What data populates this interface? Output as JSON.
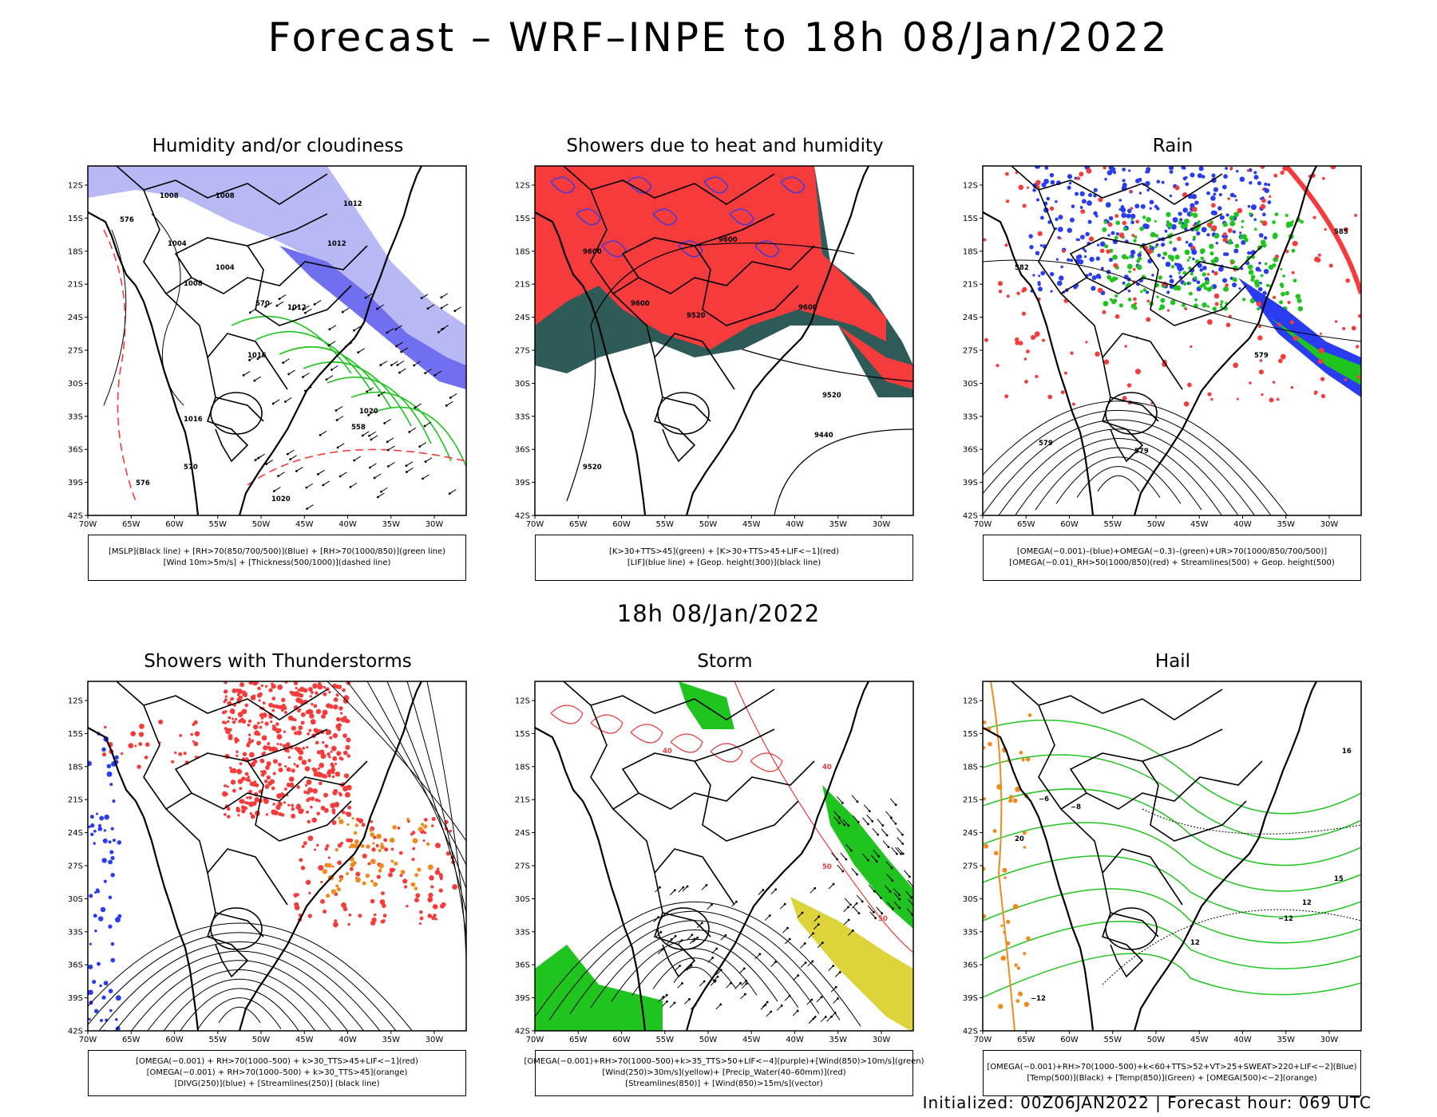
{
  "title": "Forecast – WRF–INPE to 18h 08/Jan/2022",
  "subtitle": "18h 08/Jan/2022",
  "footer": "Initialized: 00Z06JAN2022 | Forecast hour: 069 UTC",
  "axes": {
    "lat_labels": [
      "12S",
      "15S",
      "18S",
      "21S",
      "24S",
      "27S",
      "30S",
      "33S",
      "36S",
      "39S",
      "42S"
    ],
    "lon_labels": [
      "70W",
      "65W",
      "60W",
      "55W",
      "50W",
      "45W",
      "40W",
      "35W",
      "30W"
    ]
  },
  "colors": {
    "blue_fill": "#6f6ff0",
    "light_blue": "#b8b8f5",
    "green": "#1fc41f",
    "red": "#f53b3b",
    "dark_teal": "#2e5a57",
    "yellow": "#dcd43a",
    "orange": "#f08a1c"
  },
  "panels": [
    {
      "title": "Humidity and/or cloudiness",
      "legend": [
        "[MSLP](Black line) + [RH>70(850/700/500)](Blue) + [RH>70(1000/850)](green line)",
        "[Wind 10m>5m/s] + [Thickness(500/1000)](dashed line)"
      ],
      "labels": [
        "1008",
        "1008",
        "1012",
        "1012",
        "1004",
        "1004",
        "1008",
        "1012",
        "1016",
        "1020",
        "1020",
        "1016",
        "576",
        "570",
        "558",
        "576",
        "570"
      ]
    },
    {
      "title": "Showers due to heat and humidity",
      "legend": [
        "[K>30+TTS>45](green) + [K>30+TTS>45+LIF<−1](red)",
        "[LIF](blue line) + [Geop. height(300)](black line)"
      ],
      "labels": [
        "9600",
        "9600",
        "9520",
        "9600",
        "9520",
        "9440",
        "9520",
        "9600"
      ]
    },
    {
      "title": "Rain",
      "legend": [
        "[OMEGA(−0.001)–(blue)+OMEGA(−0.3)–(green)+UR>70(1000/850/700/500)]",
        "[OMEGA(−0.01)_RH>50(1000/850)(red) + Streamlines(500) + Geop. height(500)"
      ],
      "labels": [
        "585",
        "579",
        "579",
        "579",
        "582"
      ]
    },
    {
      "title": "Showers with Thunderstorms",
      "legend": [
        "[OMEGA(−0.001) + RH>70(1000–500) + k>30_TTS>45+LIF<−1](red)",
        "[OMEGA(−0.001) + RH>70(1000–500) + k>30_TTS>45](orange)",
        "[DIVG(250)](blue) + [Streamlines(250)] (black line)"
      ],
      "labels": []
    },
    {
      "title": "Storm",
      "legend": [
        "[OMEGA(−0.001)+RH>70(1000–500)+k>35_TTS>50+LIF<−4](purple)+[Wind(850)>10m/s](green)",
        "[Wind(250)>30m/s](yellow)+ [Precip_Water(40–60mm)](red)",
        "[Streamlines(850)] + [Wind(850)>15m/s](vector)"
      ],
      "labels": [
        "40",
        "50",
        "50",
        "40"
      ]
    },
    {
      "title": "Hail",
      "legend": [
        "[OMEGA(−0.001)+RH>70(1000–500)+k<60+TTS>52+VT>25+SWEAT>220+LIF<−2](Blue)",
        "[Temp(500)](Black) + [Temp(850)](Green) + [OMEGA(500)<−2](orange)"
      ],
      "labels": [
        "−6",
        "−8",
        "−12",
        "−12",
        "12",
        "12",
        "16",
        "15",
        "20"
      ]
    }
  ]
}
